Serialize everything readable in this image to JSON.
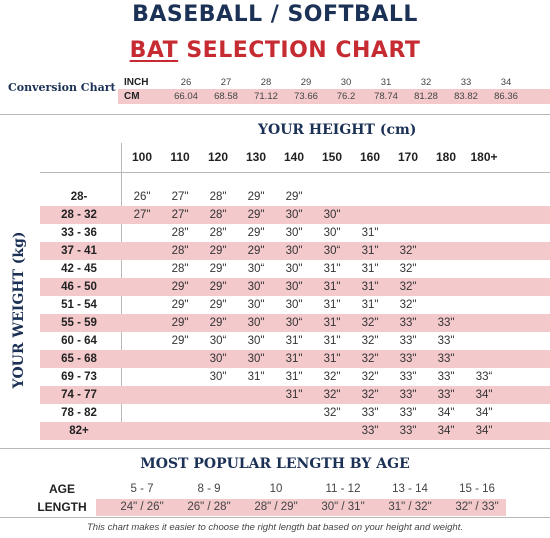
{
  "title_line1": "BASEBALL / SOFTBALL",
  "title_line2_a": "BAT",
  "title_line2_b": " SELECTION CHART",
  "conversion": {
    "label": "Conversion Chart",
    "inch_label": "INCH",
    "cm_label": "CM",
    "inch": [
      "26",
      "27",
      "28",
      "29",
      "30",
      "31",
      "32",
      "33",
      "34"
    ],
    "cm": [
      "66.04",
      "68.58",
      "71.12",
      "73.66",
      "76.2",
      "78.74",
      "81.28",
      "83.82",
      "86.36"
    ]
  },
  "height_title": "YOUR HEIGHT (cm)",
  "weight_title": "YOUR WEIGHT (kg)",
  "heights": [
    "100",
    "110",
    "120",
    "130",
    "140",
    "150",
    "160",
    "170",
    "180",
    "180+"
  ],
  "rows": [
    {
      "weight": "28-",
      "cells": [
        "26\"",
        "27\"",
        "28\"",
        "29\"",
        "29\"",
        "",
        "",
        "",
        "",
        ""
      ]
    },
    {
      "weight": "28 - 32",
      "cells": [
        "27\"",
        "27\"",
        "28\"",
        "29\"",
        "30\"",
        "30\"",
        "",
        "",
        "",
        ""
      ]
    },
    {
      "weight": "33 - 36",
      "cells": [
        "",
        "28\"",
        "28\"",
        "29\"",
        "30\"",
        "30\"",
        "31\"",
        "",
        "",
        ""
      ]
    },
    {
      "weight": "37 - 41",
      "cells": [
        "",
        "28\"",
        "29\"",
        "29\"",
        "30\"",
        "30“",
        "31\"",
        "32\"",
        "",
        ""
      ]
    },
    {
      "weight": "42 - 45",
      "cells": [
        "",
        "28\"",
        "29\"",
        "30“",
        "30\"",
        "31\"",
        "31\"",
        "32\"",
        "",
        ""
      ]
    },
    {
      "weight": "46 - 50",
      "cells": [
        "",
        "29\"",
        "29\"",
        "30\"",
        "30\"",
        "31\"",
        "31\"",
        "32\"",
        "",
        ""
      ]
    },
    {
      "weight": "51 - 54",
      "cells": [
        "",
        "29\"",
        "29\"",
        "30\"",
        "30\"",
        "31\"",
        "31\"",
        "32\"",
        "",
        ""
      ]
    },
    {
      "weight": "55 - 59",
      "cells": [
        "",
        "29\"",
        "29\"",
        "30\"",
        "30“",
        "31\"",
        "32\"",
        "33\"",
        "33\"",
        ""
      ]
    },
    {
      "weight": "60 - 64",
      "cells": [
        "",
        "29\"",
        "30“",
        "30\"",
        "31\"",
        "31\"",
        "32\"",
        "33\"",
        "33\"",
        ""
      ]
    },
    {
      "weight": "65 - 68",
      "cells": [
        "",
        "",
        "30\"",
        "30\"",
        "31\"",
        "31\"",
        "32\"",
        "33\"",
        "33\"",
        ""
      ]
    },
    {
      "weight": "69 - 73",
      "cells": [
        "",
        "",
        "30\"",
        "31\"",
        "31\"",
        "32\"",
        "32\"",
        "33\"",
        "33\"",
        "33“"
      ]
    },
    {
      "weight": "74 - 77",
      "cells": [
        "",
        "",
        "",
        "",
        "31\"",
        "32\"",
        "32\"",
        "33\"",
        "33\"",
        "34\""
      ]
    },
    {
      "weight": "78 - 82",
      "cells": [
        "",
        "",
        "",
        "",
        "",
        "32\"",
        "33\"",
        "33\"",
        "34\"",
        "34\""
      ]
    },
    {
      "weight": "82+",
      "cells": [
        "",
        "",
        "",
        "",
        "",
        "",
        "33\"",
        "33\"",
        "34\"",
        "34\""
      ]
    }
  ],
  "popular": {
    "title": "MOST POPULAR LENGTH BY AGE",
    "age_label": "AGE",
    "length_label": "LENGTH",
    "ages": [
      "5 - 7",
      "8 - 9",
      "10",
      "11 - 12",
      "13 - 14",
      "15 - 16"
    ],
    "lengths": [
      "24\" / 26\"",
      "26\" / 28\"",
      "28\" / 29\"",
      "30\" / 31\"",
      "31\" / 32\"",
      "32\" / 33\""
    ]
  },
  "footer": "This chart makes it easier to choose the right length bat based on your height and weight.",
  "colors": {
    "navy": "#1c3156",
    "red": "#c62b32",
    "band": "#f3c9cc"
  }
}
